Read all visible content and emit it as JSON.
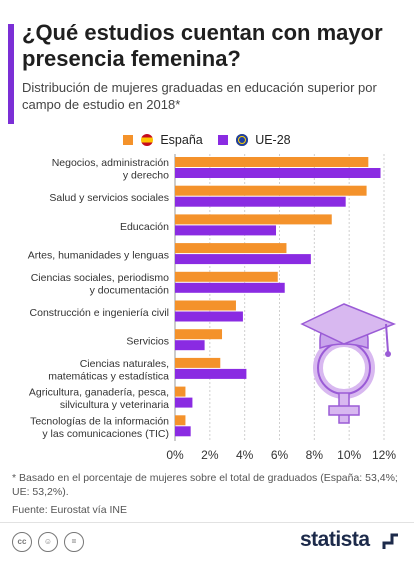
{
  "header": {
    "title": "¿Qué estudios cuentan con mayor presencia femenina?",
    "subtitle": "Distribución de mujeres graduadas en educación superior por campo de estudio en 2018*"
  },
  "legend": [
    {
      "name": "España",
      "color": "#f4922b",
      "icon": "spain-flag-icon"
    },
    {
      "name": "UE-28",
      "color": "#8a2be2",
      "icon": "eu-flag-icon"
    }
  ],
  "chart_data": {
    "type": "bar",
    "orientation": "horizontal",
    "categories": [
      [
        "Negocios, administración",
        "y derecho"
      ],
      [
        "Salud y servicios sociales"
      ],
      [
        "Educación"
      ],
      [
        "Artes, humanidades y lenguas"
      ],
      [
        "Ciencias sociales, periodismo",
        "y documentación"
      ],
      [
        "Construcción e ingeniería civil"
      ],
      [
        "Servicios"
      ],
      [
        "Ciencias naturales,",
        "matemáticas y estadística"
      ],
      [
        "Agricultura, ganadería, pesca,",
        "silvicultura y veterinaria"
      ],
      [
        "Tecnologías de la información",
        "y las comunicaciones (TIC)"
      ]
    ],
    "series": [
      {
        "name": "España",
        "color": "#f4922b",
        "values": [
          11.1,
          11.0,
          9.0,
          6.4,
          5.9,
          3.5,
          2.7,
          2.6,
          0.6,
          0.6
        ]
      },
      {
        "name": "UE-28",
        "color": "#8a2be2",
        "values": [
          11.8,
          9.8,
          5.8,
          7.8,
          6.3,
          3.9,
          1.7,
          4.1,
          1.0,
          0.9
        ]
      }
    ],
    "x_ticks": [
      "0%",
      "2%",
      "4%",
      "6%",
      "8%",
      "10%",
      "12%"
    ],
    "xlim": [
      0,
      12
    ],
    "grid": true
  },
  "footnote": "* Basado en el porcentaje de mujeres sobre el total de graduados (España: 53,4%; UE: 53,2%).",
  "source": "Fuente: Eurostat vía INE",
  "footer": {
    "brand": "statista",
    "license_icons": [
      "cc-icon",
      "by-icon",
      "nd-icon"
    ]
  }
}
